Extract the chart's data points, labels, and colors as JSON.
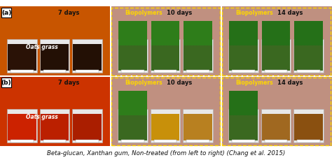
{
  "figure_bg": "#ffffff",
  "caption": "Beta-glucan, Xanthan gum, Non-treated (from left to right) (Chang et al. 2015)",
  "caption_fontsize": 6.2,
  "row_labels": [
    "(a)",
    "(b)"
  ],
  "day_labels": [
    "7 days",
    "10 days",
    "14 days"
  ],
  "biopolymer_label": "Biopolymers",
  "oats_grass_label": "Oats grass",
  "row_a_panel0_bg": "#D45500",
  "row_a_panel1_bg": "#C09080",
  "row_a_panel2_bg": "#C8A090",
  "row_b_panel0_bg": "#CC3300",
  "row_b_panel1_bg": "#C09080",
  "row_b_panel2_bg": "#C8A090",
  "row_a_trays": [
    [
      [
        "#3A1A08",
        "#2E1408",
        "#2A1206"
      ],
      [
        "#1A6010",
        "#1E7015",
        "#186010"
      ],
      [
        "#196018",
        "#156015",
        "#1A6818"
      ]
    ],
    [
      null,
      null,
      null
    ],
    [
      null,
      null,
      null
    ]
  ],
  "row_b_trays": [
    [
      [
        "#CC2200",
        "#BB2000",
        "#AA1E00"
      ],
      [
        "#228B22",
        "#C8901A",
        "#B88020"
      ],
      [
        "#206020",
        "#B07818",
        "#8A5810"
      ]
    ],
    [
      null,
      null,
      null
    ],
    [
      null,
      null,
      null
    ]
  ],
  "biopolymer_box_color": "#FFD700",
  "row_sep_color": "#ffffff",
  "label_box_bg": "#ffffff",
  "label_box_edge": "#000000"
}
